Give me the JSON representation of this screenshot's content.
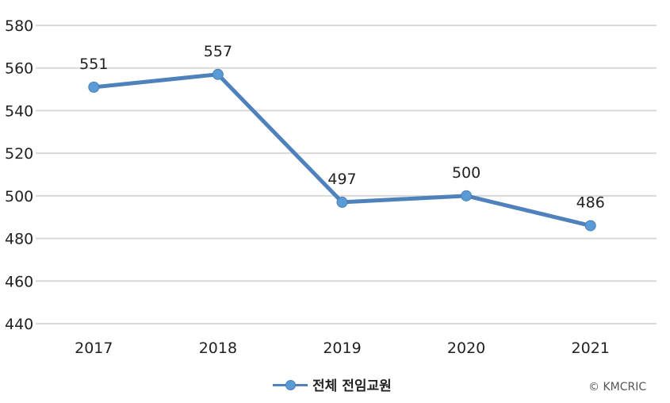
{
  "chart_data": {
    "type": "line",
    "title": "",
    "xlabel": "",
    "ylabel": "",
    "categories": [
      "2017",
      "2018",
      "2019",
      "2020",
      "2021"
    ],
    "series": [
      {
        "name": "전체 전임교원",
        "values": [
          551,
          557,
          497,
          500,
          486
        ],
        "color": "#4f81bd"
      }
    ],
    "ylim": [
      440,
      580
    ],
    "yticks": [
      580,
      560,
      540,
      520,
      500,
      480,
      460,
      440
    ],
    "grid": true,
    "legend_position": "bottom",
    "data_labels": [
      "551",
      "557",
      "497",
      "500",
      "486"
    ]
  },
  "legend": {
    "label": "전체 전임교원"
  },
  "credit": "© KMCRIC"
}
